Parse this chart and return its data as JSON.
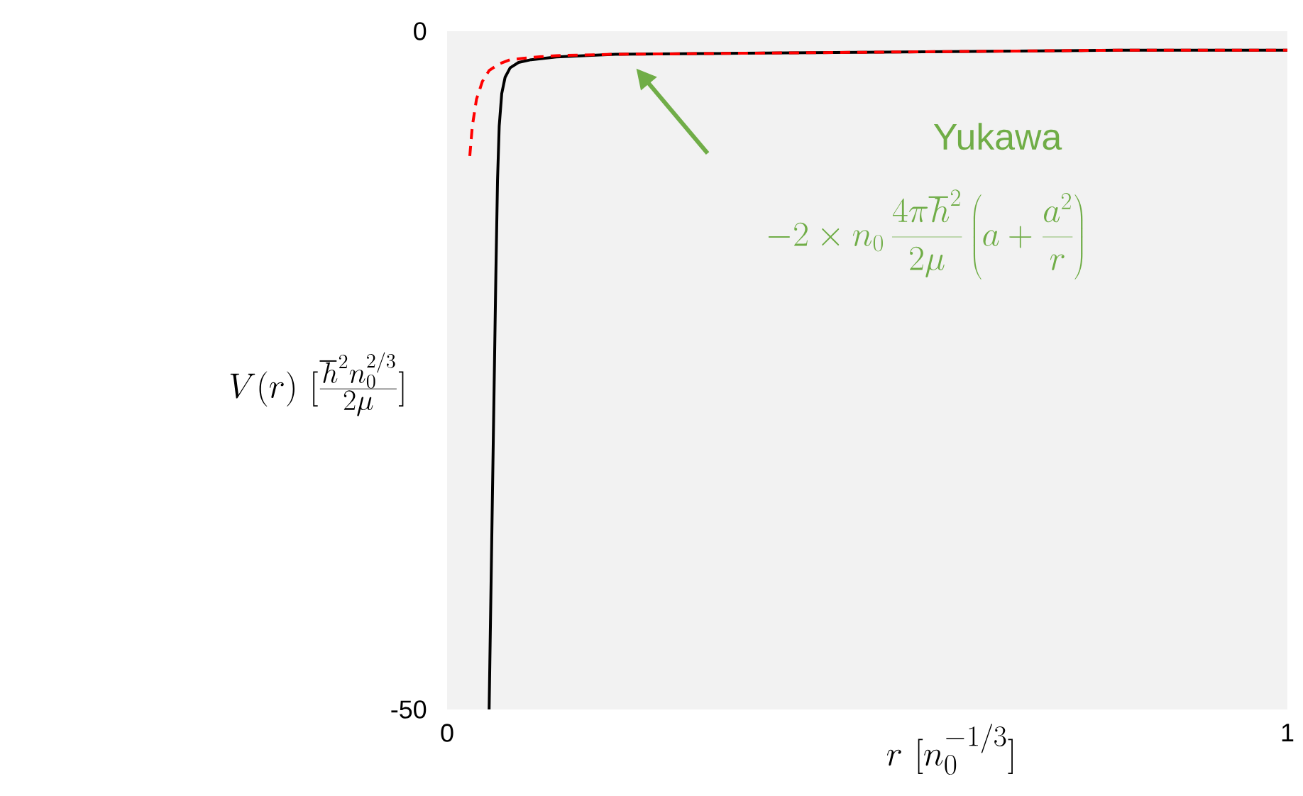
{
  "chart_data": {
    "type": "line",
    "xlabel": "r\\ [n_0^{-1/3}]",
    "ylabel": "V(r)\\ [\\frac{\\hbar^2 n_0^{2/3}}{2\\mu}]",
    "annotations": [
      "Yukawa",
      "-2\\times n_0\\,\\frac{4\\pi\\hbar^2}{2\\mu}\\left(a+\\frac{a^2}{r}\\right)"
    ],
    "xlim": [
      0,
      1
    ],
    "ylim": [
      -50,
      0
    ],
    "xticks": [
      0,
      1
    ],
    "yticks": [
      -50,
      0
    ],
    "grid": false,
    "marker": "none",
    "series": [
      {
        "color": "#000000",
        "line_style": "solid",
        "x": [
          0.05,
          0.052,
          0.054,
          0.056,
          0.058,
          0.06,
          0.062,
          0.065,
          0.069,
          0.075,
          0.085,
          0.1,
          0.13,
          0.2,
          0.4,
          0.6,
          0.8,
          1.0
        ],
        "values": [
          -50,
          -42,
          -34,
          -26,
          -18,
          -11,
          -7,
          -4.6,
          -3.4,
          -2.7,
          -2.3,
          -2.1,
          -1.9,
          -1.7,
          -1.6,
          -1.5,
          -1.4,
          -1.4
        ]
      },
      {
        "color": "#ff0000",
        "line_style": "dashed",
        "x": [
          0.027,
          0.03,
          0.035,
          0.042,
          0.05,
          0.062,
          0.075,
          0.09,
          0.108,
          0.13,
          0.2,
          0.4,
          0.6,
          0.8,
          1.0
        ],
        "values": [
          -9.2,
          -7.0,
          -5.0,
          -3.7,
          -2.9,
          -2.4,
          -2.1,
          -2.0,
          -1.9,
          -1.8,
          -1.7,
          -1.6,
          -1.5,
          -1.4,
          -1.4
        ]
      }
    ]
  }
}
